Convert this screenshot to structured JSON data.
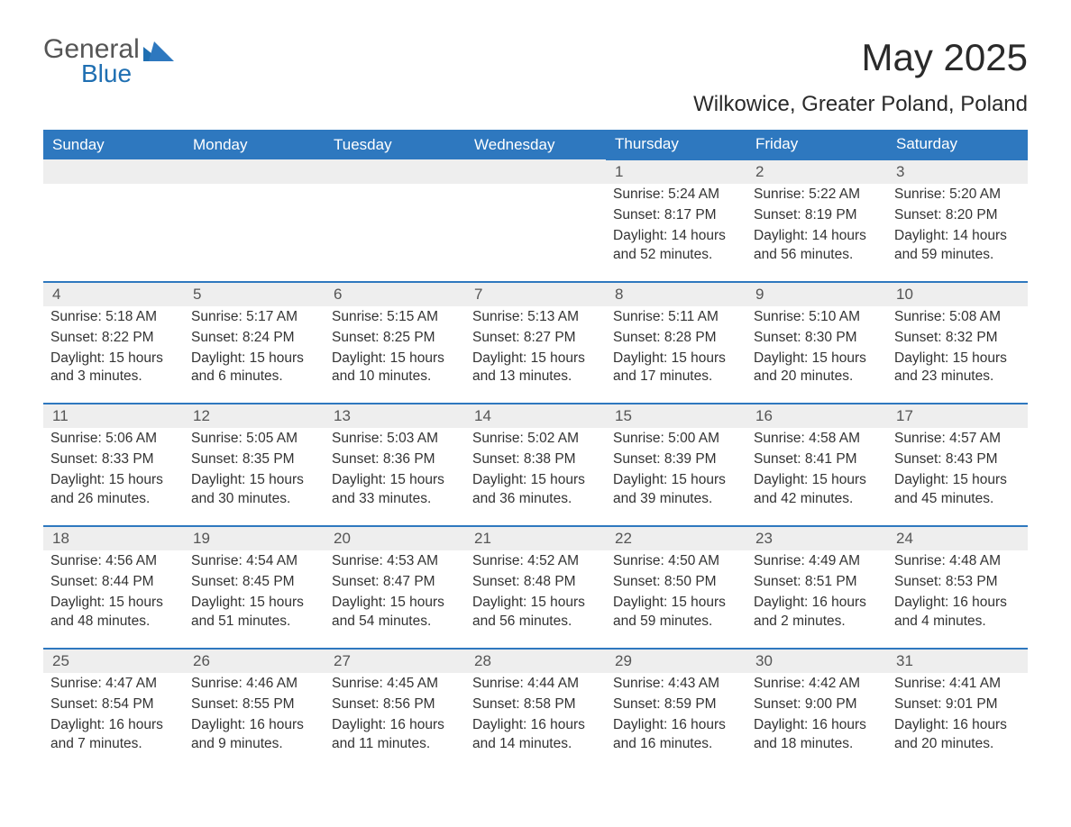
{
  "brand": {
    "part1": "General",
    "part2": "Blue",
    "accent": "#1f6fb2",
    "text_color": "#555"
  },
  "title": "May 2025",
  "location": "Wilkowice, Greater Poland, Poland",
  "colors": {
    "header_bg": "#2e78bf",
    "header_text": "#ffffff",
    "row_divider": "#2e78bf",
    "daynum_bg": "#eeeeee",
    "daynum_text": "#555555",
    "body_text": "#333333",
    "background": "#ffffff"
  },
  "typography": {
    "title_fontsize": 42,
    "location_fontsize": 24,
    "dayhead_fontsize": 17,
    "daynum_fontsize": 17,
    "cell_fontsize": 15.5,
    "font_family": "Arial"
  },
  "layout": {
    "columns": 7,
    "rows": 5,
    "first_day_column_index": 4
  },
  "day_headers": [
    "Sunday",
    "Monday",
    "Tuesday",
    "Wednesday",
    "Thursday",
    "Friday",
    "Saturday"
  ],
  "days": [
    {
      "n": 1,
      "sunrise": "5:24 AM",
      "sunset": "8:17 PM",
      "daylight": "14 hours and 52 minutes."
    },
    {
      "n": 2,
      "sunrise": "5:22 AM",
      "sunset": "8:19 PM",
      "daylight": "14 hours and 56 minutes."
    },
    {
      "n": 3,
      "sunrise": "5:20 AM",
      "sunset": "8:20 PM",
      "daylight": "14 hours and 59 minutes."
    },
    {
      "n": 4,
      "sunrise": "5:18 AM",
      "sunset": "8:22 PM",
      "daylight": "15 hours and 3 minutes."
    },
    {
      "n": 5,
      "sunrise": "5:17 AM",
      "sunset": "8:24 PM",
      "daylight": "15 hours and 6 minutes."
    },
    {
      "n": 6,
      "sunrise": "5:15 AM",
      "sunset": "8:25 PM",
      "daylight": "15 hours and 10 minutes."
    },
    {
      "n": 7,
      "sunrise": "5:13 AM",
      "sunset": "8:27 PM",
      "daylight": "15 hours and 13 minutes."
    },
    {
      "n": 8,
      "sunrise": "5:11 AM",
      "sunset": "8:28 PM",
      "daylight": "15 hours and 17 minutes."
    },
    {
      "n": 9,
      "sunrise": "5:10 AM",
      "sunset": "8:30 PM",
      "daylight": "15 hours and 20 minutes."
    },
    {
      "n": 10,
      "sunrise": "5:08 AM",
      "sunset": "8:32 PM",
      "daylight": "15 hours and 23 minutes."
    },
    {
      "n": 11,
      "sunrise": "5:06 AM",
      "sunset": "8:33 PM",
      "daylight": "15 hours and 26 minutes."
    },
    {
      "n": 12,
      "sunrise": "5:05 AM",
      "sunset": "8:35 PM",
      "daylight": "15 hours and 30 minutes."
    },
    {
      "n": 13,
      "sunrise": "5:03 AM",
      "sunset": "8:36 PM",
      "daylight": "15 hours and 33 minutes."
    },
    {
      "n": 14,
      "sunrise": "5:02 AM",
      "sunset": "8:38 PM",
      "daylight": "15 hours and 36 minutes."
    },
    {
      "n": 15,
      "sunrise": "5:00 AM",
      "sunset": "8:39 PM",
      "daylight": "15 hours and 39 minutes."
    },
    {
      "n": 16,
      "sunrise": "4:58 AM",
      "sunset": "8:41 PM",
      "daylight": "15 hours and 42 minutes."
    },
    {
      "n": 17,
      "sunrise": "4:57 AM",
      "sunset": "8:43 PM",
      "daylight": "15 hours and 45 minutes."
    },
    {
      "n": 18,
      "sunrise": "4:56 AM",
      "sunset": "8:44 PM",
      "daylight": "15 hours and 48 minutes."
    },
    {
      "n": 19,
      "sunrise": "4:54 AM",
      "sunset": "8:45 PM",
      "daylight": "15 hours and 51 minutes."
    },
    {
      "n": 20,
      "sunrise": "4:53 AM",
      "sunset": "8:47 PM",
      "daylight": "15 hours and 54 minutes."
    },
    {
      "n": 21,
      "sunrise": "4:52 AM",
      "sunset": "8:48 PM",
      "daylight": "15 hours and 56 minutes."
    },
    {
      "n": 22,
      "sunrise": "4:50 AM",
      "sunset": "8:50 PM",
      "daylight": "15 hours and 59 minutes."
    },
    {
      "n": 23,
      "sunrise": "4:49 AM",
      "sunset": "8:51 PM",
      "daylight": "16 hours and 2 minutes."
    },
    {
      "n": 24,
      "sunrise": "4:48 AM",
      "sunset": "8:53 PM",
      "daylight": "16 hours and 4 minutes."
    },
    {
      "n": 25,
      "sunrise": "4:47 AM",
      "sunset": "8:54 PM",
      "daylight": "16 hours and 7 minutes."
    },
    {
      "n": 26,
      "sunrise": "4:46 AM",
      "sunset": "8:55 PM",
      "daylight": "16 hours and 9 minutes."
    },
    {
      "n": 27,
      "sunrise": "4:45 AM",
      "sunset": "8:56 PM",
      "daylight": "16 hours and 11 minutes."
    },
    {
      "n": 28,
      "sunrise": "4:44 AM",
      "sunset": "8:58 PM",
      "daylight": "16 hours and 14 minutes."
    },
    {
      "n": 29,
      "sunrise": "4:43 AM",
      "sunset": "8:59 PM",
      "daylight": "16 hours and 16 minutes."
    },
    {
      "n": 30,
      "sunrise": "4:42 AM",
      "sunset": "9:00 PM",
      "daylight": "16 hours and 18 minutes."
    },
    {
      "n": 31,
      "sunrise": "4:41 AM",
      "sunset": "9:01 PM",
      "daylight": "16 hours and 20 minutes."
    }
  ],
  "labels": {
    "sunrise": "Sunrise:",
    "sunset": "Sunset:",
    "daylight": "Daylight:"
  }
}
